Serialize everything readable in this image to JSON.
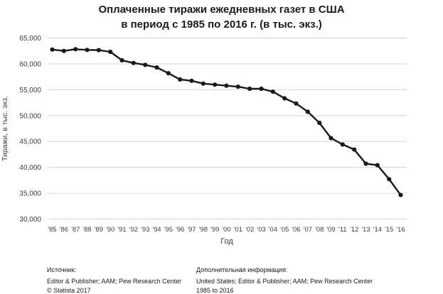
{
  "title": {
    "line1": "Оплаченные тиражи ежедневных газет в США",
    "line2": "в период с 1985 по 2016 г. (в тыс. экз.)"
  },
  "chart_data": {
    "type": "line",
    "title": "Оплаченные тиражи ежедневных газет в США в период с 1985 по 2016 г. (в тыс. экз.)",
    "xlabel": "Год",
    "ylabel": "Тиражи, в тыс. экз.",
    "categories": [
      "'85",
      "'86",
      "'87",
      "'88",
      "'89",
      "'90",
      "'91",
      "'92",
      "'93",
      "'94",
      "'95",
      "'96",
      "'97",
      "'98",
      "'99",
      "'00",
      "'01",
      "'02",
      "'03",
      "'04",
      "'05",
      "'06",
      "'07",
      "'08",
      "'09",
      "'11",
      "'12",
      "'13",
      "'14",
      "'15",
      "'16"
    ],
    "years": [
      1985,
      1986,
      1987,
      1988,
      1989,
      1990,
      1991,
      1992,
      1993,
      1994,
      1995,
      1996,
      1997,
      1998,
      1999,
      2000,
      2001,
      2002,
      2003,
      2004,
      2005,
      2006,
      2007,
      2008,
      2009,
      2011,
      2012,
      2013,
      2014,
      2015,
      2016
    ],
    "values": [
      62766,
      62502,
      62826,
      62695,
      62649,
      62328,
      60687,
      60164,
      59812,
      59305,
      58193,
      56983,
      56728,
      56182,
      55979,
      55773,
      55578,
      55186,
      55185,
      54626,
      53345,
      52329,
      50742,
      48597,
      45653,
      44421,
      43433,
      40712,
      40420,
      37711,
      34657
    ],
    "ylim": [
      30000,
      65000
    ],
    "y_ticks": [
      {
        "value": 65000,
        "label": "65,000"
      },
      {
        "value": 60000,
        "label": "60,000"
      },
      {
        "value": 55000,
        "label": "55,000"
      },
      {
        "value": 50000,
        "label": "50,000"
      },
      {
        "value": 45000,
        "label": "45,000"
      },
      {
        "value": 40000,
        "label": "40,000"
      },
      {
        "value": 35000,
        "label": "35,000"
      },
      {
        "value": 30000,
        "label": "30,000"
      }
    ],
    "grid": "horizontal",
    "legend": "none",
    "line_color": "#1a1a1a",
    "point_color": "#1a1a1a",
    "grid_color": "#d6d6d6",
    "tick_color": "#3d3d3d"
  },
  "footer": {
    "source_label": "Источник:",
    "source_value": "Editor & Publisher; AAM; Pew Research Center",
    "copyright": "© Statista 2017",
    "info_label": "Дополнительная информация:",
    "info_value": "United States; Editor & Publisher; AAM; Pew Research Center",
    "info_period": "1985 to 2016"
  }
}
